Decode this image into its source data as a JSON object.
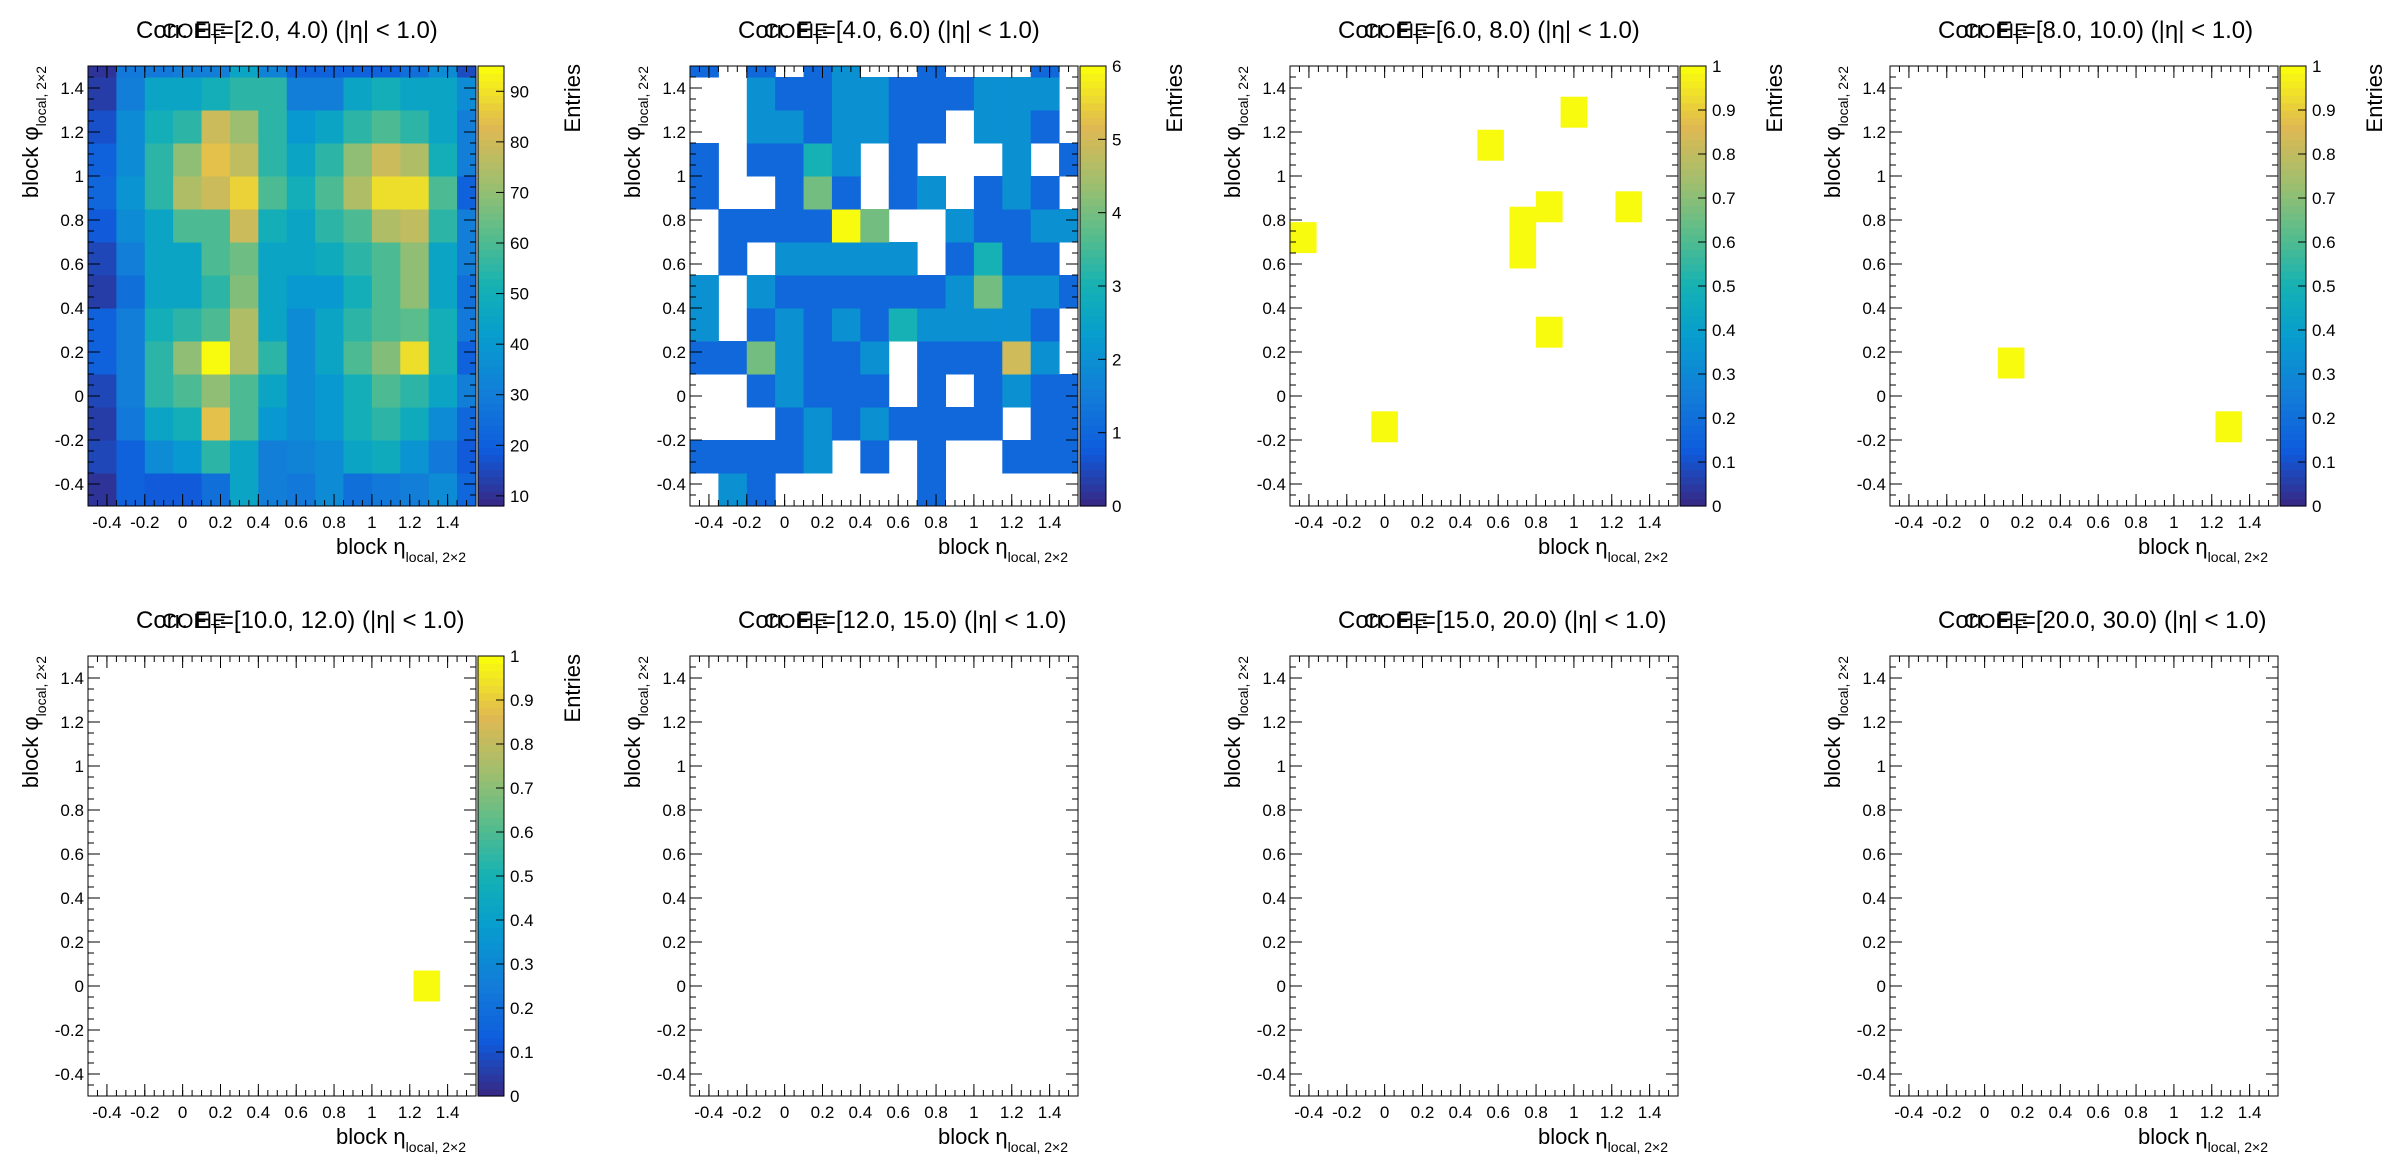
{
  "panels": [
    {
      "title_a": "Corr. E",
      "title_b": "T",
      "title_c": "=[2.0, 4.0) (|η| < 1.0)",
      "title_d": "COFIE",
      "ylabel": "block φ",
      "ylabel_sub": "local, 2×2",
      "xlabel": "block η",
      "xlabel_sub": "local, 2×2",
      "zlabel": "Entries",
      "has_colorbar": true
    },
    {
      "title_a": "Corr. E",
      "title_b": "T",
      "title_c": "=[4.0, 6.0) (|η| < 1.0)",
      "title_d": "COFIE",
      "ylabel": "block φ",
      "ylabel_sub": "local, 2×2",
      "xlabel": "block η",
      "xlabel_sub": "local, 2×2",
      "zlabel": "Entries",
      "has_colorbar": true
    },
    {
      "title_a": "Corr. E",
      "title_b": "T",
      "title_c": "=[6.0, 8.0) (|η| < 1.0)",
      "title_d": "COFIE",
      "ylabel": "block φ",
      "ylabel_sub": "local, 2×2",
      "xlabel": "block η",
      "xlabel_sub": "local, 2×2",
      "zlabel": "Entries",
      "has_colorbar": true
    },
    {
      "title_a": "Corr. E",
      "title_b": "T",
      "title_c": "=[8.0, 10.0) (|η| < 1.0)",
      "title_d": "COFIE",
      "ylabel": "block φ",
      "ylabel_sub": "local, 2×2",
      "xlabel": "block η",
      "xlabel_sub": "local, 2×2",
      "zlabel": "Entries",
      "has_colorbar": true
    },
    {
      "title_a": "Corr. E",
      "title_b": "T",
      "title_c": "=[10.0, 12.0) (|η| < 1.0)",
      "title_d": "COFIE",
      "ylabel": "block φ",
      "ylabel_sub": "local, 2×2",
      "xlabel": "block η",
      "xlabel_sub": "local, 2×2",
      "zlabel": "Entries",
      "has_colorbar": true
    },
    {
      "title_a": "Corr. E",
      "title_b": "T",
      "title_c": "=[12.0, 15.0) (|η| < 1.0)",
      "title_d": "COFIE",
      "ylabel": "block φ",
      "ylabel_sub": "local, 2×2",
      "xlabel": "block η",
      "xlabel_sub": "local, 2×2",
      "zlabel": "",
      "has_colorbar": false
    },
    {
      "title_a": "Corr. E",
      "title_b": "T",
      "title_c": "=[15.0, 20.0) (|η| < 1.0)",
      "title_d": "COFIE",
      "ylabel": "block φ",
      "ylabel_sub": "local, 2×2",
      "xlabel": "block η",
      "xlabel_sub": "local, 2×2",
      "zlabel": "",
      "has_colorbar": false
    },
    {
      "title_a": "Corr. E",
      "title_b": "T",
      "title_c": "=[20.0, 30.0) (|η| < 1.0)",
      "title_d": "COFIE",
      "ylabel": "block φ",
      "ylabel_sub": "local, 2×2",
      "xlabel": "block η",
      "xlabel_sub": "local, 2×2",
      "zlabel": "",
      "has_colorbar": false
    }
  ],
  "chart_data": [
    {
      "type": "heatmap",
      "title": "Corr. E_T=[2.0, 4.0) (|η| < 1.0)",
      "xlabel": "block η_local, 2×2",
      "ylabel": "block φ_local, 2×2",
      "zlabel": "Entries",
      "xlim": [
        -0.5,
        1.55
      ],
      "ylim": [
        -0.5,
        1.5
      ],
      "zlim": [
        8,
        95
      ],
      "x_ticks": [
        "-0.4",
        "-0.2",
        "0",
        "0.2",
        "0.4",
        "0.6",
        "0.8",
        "1",
        "1.2",
        "1.4"
      ],
      "y_ticks": [
        "-0.4",
        "-0.2",
        "0",
        "0.2",
        "0.4",
        "0.6",
        "0.8",
        "1",
        "1.2",
        "1.4"
      ],
      "z_ticks": [
        "10",
        "20",
        "30",
        "40",
        "50",
        "60",
        "70",
        "80",
        "90"
      ],
      "x_edges": [
        -0.5,
        -0.35,
        -0.2,
        -0.05,
        0.1,
        0.25,
        0.4,
        0.55,
        0.7,
        0.85,
        1.0,
        1.15,
        1.3,
        1.45,
        1.6
      ],
      "y_edges": [
        -0.5,
        -0.35,
        -0.2,
        -0.05,
        0.1,
        0.25,
        0.4,
        0.55,
        0.7,
        0.85,
        1.0,
        1.15,
        1.3,
        1.45,
        1.6
      ],
      "z": [
        [
          10,
          20,
          18,
          18,
          25,
          45,
          30,
          28,
          35,
          25,
          28,
          30,
          35,
          22
        ],
        [
          14,
          20,
          35,
          40,
          55,
          45,
          30,
          32,
          35,
          45,
          48,
          38,
          28,
          18
        ],
        [
          12,
          28,
          45,
          50,
          85,
          60,
          40,
          35,
          40,
          50,
          55,
          48,
          35,
          22
        ],
        [
          14,
          30,
          55,
          60,
          70,
          60,
          45,
          35,
          40,
          50,
          60,
          55,
          45,
          30
        ],
        [
          20,
          30,
          55,
          70,
          95,
          75,
          55,
          35,
          45,
          60,
          68,
          90,
          50,
          20
        ],
        [
          20,
          30,
          50,
          55,
          60,
          75,
          45,
          35,
          45,
          55,
          60,
          62,
          50,
          28
        ],
        [
          12,
          25,
          45,
          45,
          55,
          68,
          45,
          40,
          40,
          50,
          60,
          70,
          45,
          25
        ],
        [
          14,
          30,
          45,
          45,
          60,
          65,
          45,
          45,
          48,
          55,
          60,
          70,
          45,
          30
        ],
        [
          18,
          35,
          45,
          60,
          60,
          80,
          50,
          45,
          55,
          60,
          75,
          78,
          55,
          30
        ],
        [
          22,
          38,
          55,
          75,
          80,
          88,
          60,
          50,
          60,
          75,
          90,
          90,
          60,
          20
        ],
        [
          20,
          35,
          55,
          70,
          85,
          78,
          55,
          45,
          55,
          70,
          80,
          75,
          50,
          30
        ],
        [
          16,
          35,
          50,
          55,
          80,
          72,
          55,
          40,
          45,
          55,
          60,
          55,
          45,
          30
        ],
        [
          12,
          30,
          45,
          45,
          50,
          55,
          55,
          30,
          30,
          45,
          50,
          45,
          45,
          35
        ],
        [
          10,
          28,
          28,
          30,
          30,
          45,
          32,
          20,
          20,
          20,
          20,
          25,
          35,
          15
        ]
      ]
    },
    {
      "type": "heatmap",
      "title": "Corr. E_T=[4.0, 6.0) (|η| < 1.0)",
      "xlabel": "block η_local, 2×2",
      "ylabel": "block φ_local, 2×2",
      "zlabel": "Entries",
      "xlim": [
        -0.5,
        1.55
      ],
      "ylim": [
        -0.5,
        1.5
      ],
      "zlim": [
        0,
        6
      ],
      "x_ticks": [
        "-0.4",
        "-0.2",
        "0",
        "0.2",
        "0.4",
        "0.6",
        "0.8",
        "1",
        "1.2",
        "1.4"
      ],
      "y_ticks": [
        "-0.4",
        "-0.2",
        "0",
        "0.2",
        "0.4",
        "0.6",
        "0.8",
        "1",
        "1.2",
        "1.4"
      ],
      "z_ticks": [
        "0",
        "1",
        "2",
        "3",
        "4",
        "5",
        "6"
      ],
      "x_edges": [
        -0.5,
        -0.35,
        -0.2,
        -0.05,
        0.1,
        0.25,
        0.4,
        0.55,
        0.7,
        0.85,
        1.0,
        1.15,
        1.3,
        1.45,
        1.6
      ],
      "y_edges": [
        -0.5,
        -0.35,
        -0.2,
        -0.05,
        0.1,
        0.25,
        0.4,
        0.55,
        0.7,
        0.85,
        1.0,
        1.15,
        1.3,
        1.45,
        1.6
      ],
      "z": [
        [
          0,
          2,
          1,
          0,
          0,
          0,
          0,
          0,
          1,
          0,
          0,
          0,
          0,
          0
        ],
        [
          1,
          1,
          1,
          1,
          2,
          0,
          1,
          0,
          1,
          0,
          0,
          1,
          1,
          1
        ],
        [
          0,
          0,
          0,
          1,
          2,
          1,
          2,
          1,
          1,
          1,
          1,
          0,
          1,
          1
        ],
        [
          0,
          0,
          1,
          2,
          1,
          1,
          1,
          0,
          1,
          0,
          1,
          2,
          1,
          1
        ],
        [
          1,
          1,
          4,
          2,
          1,
          1,
          2,
          0,
          1,
          1,
          1,
          5,
          2,
          0
        ],
        [
          2,
          0,
          1,
          2,
          1,
          2,
          1,
          3,
          2,
          2,
          2,
          2,
          1,
          0
        ],
        [
          2,
          0,
          2,
          1,
          1,
          1,
          1,
          1,
          1,
          2,
          4,
          2,
          2,
          1
        ],
        [
          0,
          1,
          0,
          2,
          2,
          2,
          2,
          2,
          0,
          1,
          3,
          1,
          1,
          0
        ],
        [
          0,
          1,
          1,
          1,
          1,
          6,
          4,
          0,
          0,
          2,
          1,
          1,
          2,
          2
        ],
        [
          1,
          0,
          0,
          1,
          4,
          1,
          0,
          1,
          2,
          0,
          1,
          2,
          1,
          0
        ],
        [
          1,
          0,
          1,
          1,
          3,
          2,
          0,
          1,
          0,
          0,
          0,
          2,
          0,
          1
        ],
        [
          0,
          0,
          2,
          2,
          1,
          2,
          2,
          1,
          1,
          0,
          2,
          2,
          1,
          0
        ],
        [
          0,
          0,
          2,
          1,
          1,
          2,
          2,
          1,
          1,
          1,
          2,
          2,
          2,
          0
        ],
        [
          1,
          0,
          1,
          0,
          1,
          2,
          0,
          0,
          1,
          0,
          0,
          0,
          1,
          0
        ]
      ]
    },
    {
      "type": "heatmap",
      "title": "Corr. E_T=[6.0, 8.0) (|η| < 1.0)",
      "xlabel": "block η_local, 2×2",
      "ylabel": "block φ_local, 2×2",
      "zlabel": "Entries",
      "xlim": [
        -0.5,
        1.55
      ],
      "ylim": [
        -0.5,
        1.5
      ],
      "zlim": [
        0,
        1
      ],
      "x_ticks": [
        "-0.4",
        "-0.2",
        "0",
        "0.2",
        "0.4",
        "0.6",
        "0.8",
        "1",
        "1.2",
        "1.4"
      ],
      "y_ticks": [
        "-0.4",
        "-0.2",
        "0",
        "0.2",
        "0.4",
        "0.6",
        "0.8",
        "1",
        "1.2",
        "1.4"
      ],
      "z_ticks": [
        "0",
        "0.1",
        "0.2",
        "0.3",
        "0.4",
        "0.5",
        "0.6",
        "0.7",
        "0.8",
        "0.9",
        "1"
      ],
      "points": [
        {
          "x": -0.43,
          "y": 0.72,
          "v": 1
        },
        {
          "x": 0.0,
          "y": -0.14,
          "v": 1
        },
        {
          "x": 0.56,
          "y": 1.14,
          "v": 1
        },
        {
          "x": 0.73,
          "y": 0.65,
          "v": 1
        },
        {
          "x": 0.73,
          "y": 0.79,
          "v": 1
        },
        {
          "x": 0.87,
          "y": 0.86,
          "v": 1
        },
        {
          "x": 0.87,
          "y": 0.29,
          "v": 1
        },
        {
          "x": 1.0,
          "y": 1.29,
          "v": 1
        },
        {
          "x": 1.29,
          "y": 0.86,
          "v": 1
        }
      ]
    },
    {
      "type": "heatmap",
      "title": "Corr. E_T=[8.0, 10.0) (|η| < 1.0)",
      "xlabel": "block η_local, 2×2",
      "ylabel": "block φ_local, 2×2",
      "zlabel": "Entries",
      "xlim": [
        -0.5,
        1.55
      ],
      "ylim": [
        -0.5,
        1.5
      ],
      "zlim": [
        0,
        1
      ],
      "x_ticks": [
        "-0.4",
        "-0.2",
        "0",
        "0.2",
        "0.4",
        "0.6",
        "0.8",
        "1",
        "1.2",
        "1.4"
      ],
      "y_ticks": [
        "-0.4",
        "-0.2",
        "0",
        "0.2",
        "0.4",
        "0.6",
        "0.8",
        "1",
        "1.2",
        "1.4"
      ],
      "z_ticks": [
        "0",
        "0.1",
        "0.2",
        "0.3",
        "0.4",
        "0.5",
        "0.6",
        "0.7",
        "0.8",
        "0.9",
        "1"
      ],
      "points": [
        {
          "x": 0.14,
          "y": 0.15,
          "v": 1
        },
        {
          "x": 1.29,
          "y": -0.14,
          "v": 1
        }
      ]
    },
    {
      "type": "heatmap",
      "title": "Corr. E_T=[10.0, 12.0) (|η| < 1.0)",
      "xlabel": "block η_local, 2×2",
      "ylabel": "block φ_local, 2×2",
      "zlabel": "Entries",
      "xlim": [
        -0.5,
        1.55
      ],
      "ylim": [
        -0.5,
        1.5
      ],
      "zlim": [
        0,
        1
      ],
      "x_ticks": [
        "-0.4",
        "-0.2",
        "0",
        "0.2",
        "0.4",
        "0.6",
        "0.8",
        "1",
        "1.2",
        "1.4"
      ],
      "y_ticks": [
        "-0.4",
        "-0.2",
        "0",
        "0.2",
        "0.4",
        "0.6",
        "0.8",
        "1",
        "1.2",
        "1.4"
      ],
      "z_ticks": [
        "0",
        "0.1",
        "0.2",
        "0.3",
        "0.4",
        "0.5",
        "0.6",
        "0.7",
        "0.8",
        "0.9",
        "1"
      ],
      "points": [
        {
          "x": 1.29,
          "y": 0.0,
          "v": 1
        }
      ]
    },
    {
      "type": "heatmap",
      "title": "Corr. E_T=[12.0, 15.0) (|η| < 1.0)",
      "xlabel": "block η_local, 2×2",
      "ylabel": "block φ_local, 2×2",
      "xlim": [
        -0.5,
        1.55
      ],
      "ylim": [
        -0.5,
        1.5
      ],
      "x_ticks": [
        "-0.4",
        "-0.2",
        "0",
        "0.2",
        "0.4",
        "0.6",
        "0.8",
        "1",
        "1.2",
        "1.4"
      ],
      "y_ticks": [
        "-0.4",
        "-0.2",
        "0",
        "0.2",
        "0.4",
        "0.6",
        "0.8",
        "1",
        "1.2",
        "1.4"
      ],
      "points": []
    },
    {
      "type": "heatmap",
      "title": "Corr. E_T=[15.0, 20.0) (|η| < 1.0)",
      "xlabel": "block η_local, 2×2",
      "ylabel": "block φ_local, 2×2",
      "xlim": [
        -0.5,
        1.55
      ],
      "ylim": [
        -0.5,
        1.5
      ],
      "x_ticks": [
        "-0.4",
        "-0.2",
        "0",
        "0.2",
        "0.4",
        "0.6",
        "0.8",
        "1",
        "1.2",
        "1.4"
      ],
      "y_ticks": [
        "-0.4",
        "-0.2",
        "0",
        "0.2",
        "0.4",
        "0.6",
        "0.8",
        "1",
        "1.2",
        "1.4"
      ],
      "points": []
    },
    {
      "type": "heatmap",
      "title": "Corr. E_T=[20.0, 30.0) (|η| < 1.0)",
      "xlabel": "block η_local, 2×2",
      "ylabel": "block φ_local, 2×2",
      "xlim": [
        -0.5,
        1.55
      ],
      "ylim": [
        -0.5,
        1.5
      ],
      "x_ticks": [
        "-0.4",
        "-0.2",
        "0",
        "0.2",
        "0.4",
        "0.6",
        "0.8",
        "1",
        "1.2",
        "1.4"
      ],
      "y_ticks": [
        "-0.4",
        "-0.2",
        "0",
        "0.2",
        "0.4",
        "0.6",
        "0.8",
        "1",
        "1.2",
        "1.4"
      ],
      "points": []
    }
  ]
}
